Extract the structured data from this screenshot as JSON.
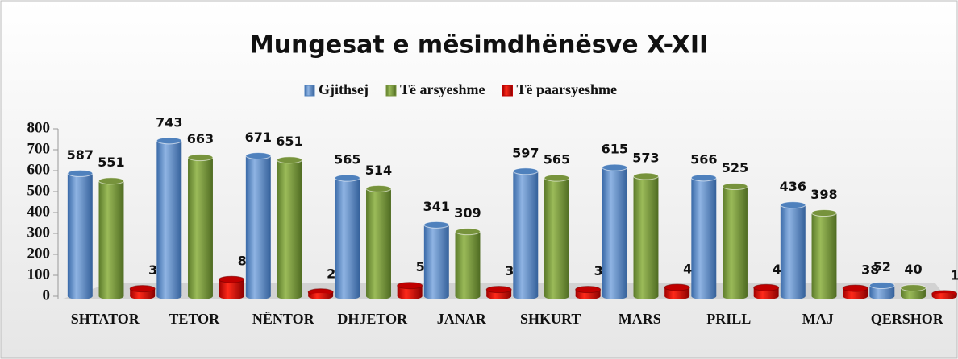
{
  "chart_data": {
    "type": "bar",
    "title": "Mungesat e mësimdhënësve X-XII",
    "categories": [
      "SHTATOR",
      "TETOR",
      "NËNTOR",
      "DHJETOR",
      "JANAR",
      "SHKURT",
      "MARS",
      "PRILL",
      "MAJ",
      "QERSHOR"
    ],
    "series": [
      {
        "name": "Gjithsej",
        "color": "#4f81bd",
        "values": [
          587,
          743,
          671,
          565,
          341,
          597,
          615,
          566,
          436,
          52
        ]
      },
      {
        "name": "Të arsyeshme",
        "color": "#77933c",
        "values": [
          551,
          663,
          651,
          514,
          309,
          565,
          573,
          525,
          398,
          40
        ]
      },
      {
        "name": "Të paarsyeshme",
        "color": "#c00000",
        "values": [
          36,
          80,
          20,
          51,
          32,
          32,
          42,
          41,
          38,
          12
        ]
      }
    ],
    "ylim": [
      0,
      800
    ],
    "yticks": [
      0,
      100,
      200,
      300,
      400,
      500,
      600,
      700,
      800
    ],
    "legend": "top"
  }
}
